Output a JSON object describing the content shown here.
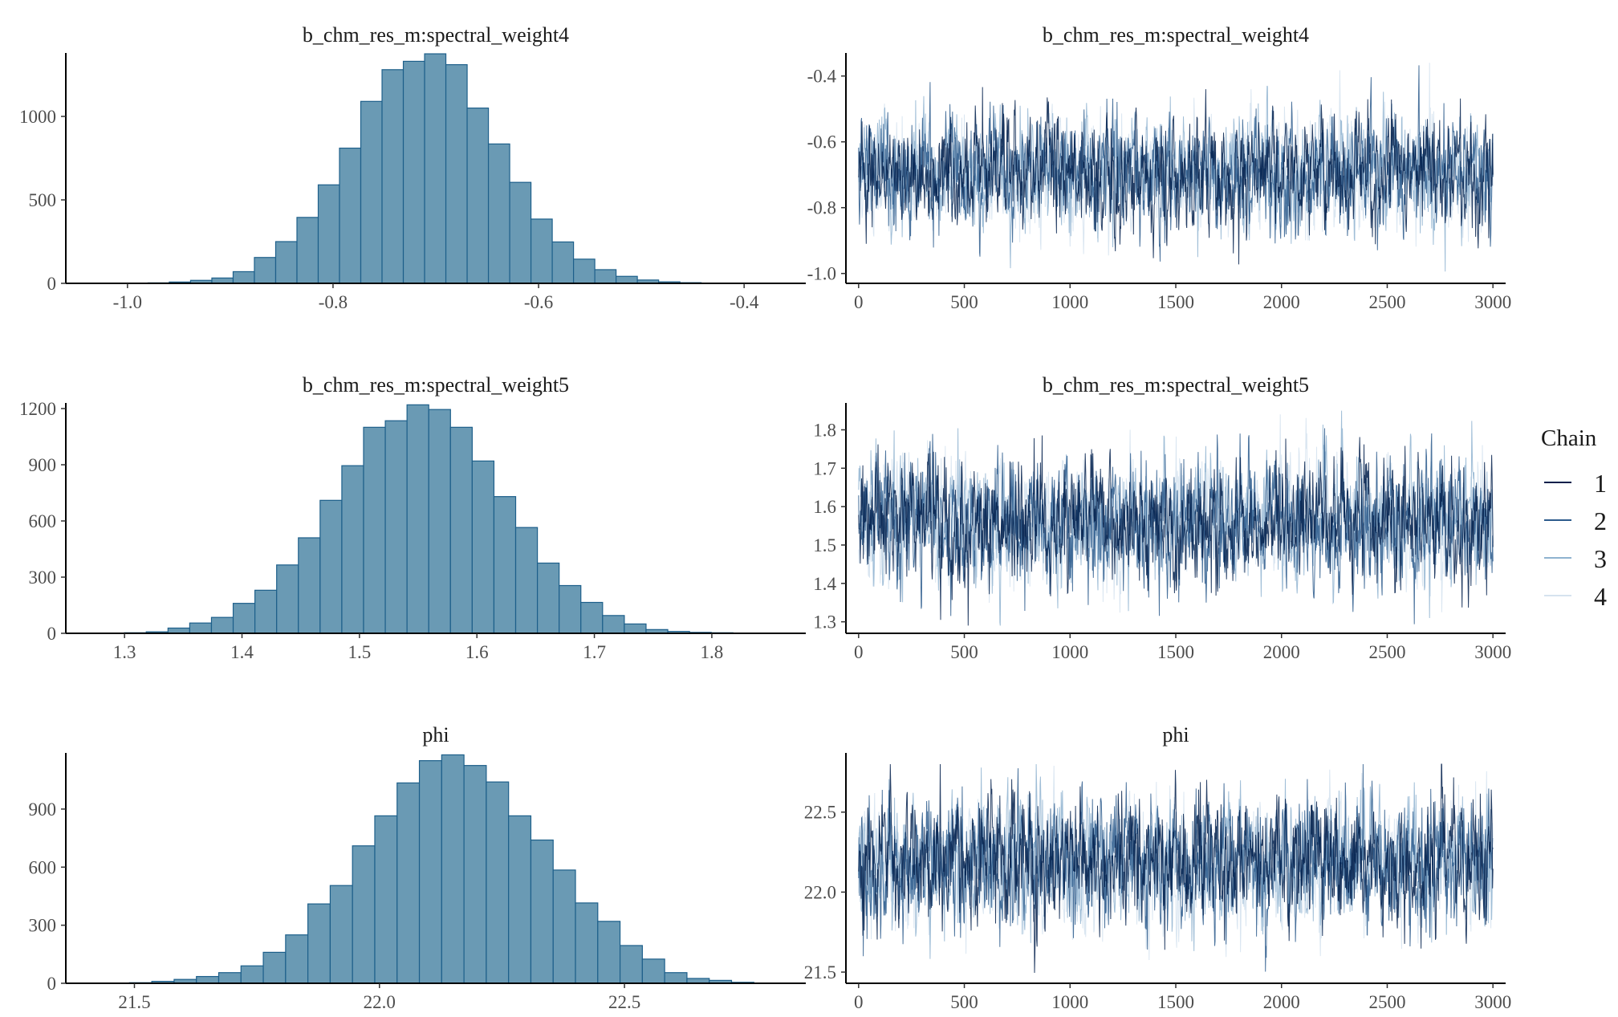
{
  "chart_data": [
    {
      "type": "bar",
      "title": "b_chm_res_m:spectral_weight4",
      "xlim": [
        -1.06,
        -0.34
      ],
      "xticks": [
        -1.0,
        -0.8,
        -0.6,
        -0.4
      ],
      "xtick_labels": [
        "-1.0",
        "-0.8",
        "-0.6",
        "-0.4"
      ],
      "ylim": [
        0,
        1380
      ],
      "yticks": [
        0,
        500,
        1000
      ],
      "ytick_labels": [
        "0",
        "500",
        "1000"
      ],
      "bin_start": -0.98,
      "bin_width": 0.0207,
      "values": [
        3,
        8,
        18,
        32,
        70,
        155,
        250,
        395,
        590,
        810,
        1090,
        1280,
        1330,
        1375,
        1310,
        1050,
        835,
        605,
        385,
        248,
        145,
        82,
        42,
        20,
        9,
        4
      ],
      "fill": "#6a9ab4",
      "stroke": "#1d5f8a"
    },
    {
      "type": "line",
      "title": "b_chm_res_m:spectral_weight4",
      "xlim": [
        -60,
        3060
      ],
      "xticks": [
        0,
        500,
        1000,
        1500,
        2000,
        2500,
        3000
      ],
      "xtick_labels": [
        "0",
        "500",
        "1000",
        "1500",
        "2000",
        "2500",
        "3000"
      ],
      "ylim": [
        -1.03,
        -0.33
      ],
      "yticks": [
        -1.0,
        -0.8,
        -0.6,
        -0.4
      ],
      "ytick_labels": [
        "-1.0",
        "-0.8",
        "-0.6",
        "-0.4"
      ],
      "iterations": 3000,
      "center": -0.695,
      "sd": 0.082,
      "observed_min": -1.0,
      "observed_max": -0.36,
      "seed": 11
    },
    {
      "type": "bar",
      "title": "b_chm_res_m:spectral_weight5",
      "xlim": [
        1.25,
        1.88
      ],
      "xticks": [
        1.3,
        1.4,
        1.5,
        1.6,
        1.7,
        1.8
      ],
      "xtick_labels": [
        "1.3",
        "1.4",
        "1.5",
        "1.6",
        "1.7",
        "1.8"
      ],
      "ylim": [
        0,
        1230
      ],
      "yticks": [
        0,
        300,
        600,
        900,
        1200
      ],
      "ytick_labels": [
        "0",
        "300",
        "600",
        "900",
        "1200"
      ],
      "bin_start": 1.3,
      "bin_width": 0.0185,
      "values": [
        3,
        8,
        28,
        55,
        85,
        160,
        230,
        365,
        510,
        710,
        895,
        1100,
        1135,
        1220,
        1195,
        1100,
        920,
        730,
        565,
        375,
        255,
        165,
        95,
        50,
        20,
        10,
        5,
        3
      ],
      "fill": "#6a9ab4",
      "stroke": "#1d5f8a"
    },
    {
      "type": "line",
      "title": "b_chm_res_m:spectral_weight5",
      "xlim": [
        -60,
        3060
      ],
      "xticks": [
        0,
        500,
        1000,
        1500,
        2000,
        2500,
        3000
      ],
      "xtick_labels": [
        "0",
        "500",
        "1000",
        "1500",
        "2000",
        "2500",
        "3000"
      ],
      "ylim": [
        1.27,
        1.87
      ],
      "yticks": [
        1.3,
        1.4,
        1.5,
        1.6,
        1.7,
        1.8
      ],
      "ytick_labels": [
        "1.3",
        "1.4",
        "1.5",
        "1.6",
        "1.7",
        "1.8"
      ],
      "iterations": 3000,
      "center": 1.56,
      "sd": 0.077,
      "observed_min": 1.29,
      "observed_max": 1.85,
      "seed": 23
    },
    {
      "type": "bar",
      "title": "phi",
      "xlim": [
        21.36,
        22.87
      ],
      "xticks": [
        21.5,
        22.0,
        22.5
      ],
      "xtick_labels": [
        "21.5",
        "22.0",
        "22.5"
      ],
      "ylim": [
        0,
        1190
      ],
      "yticks": [
        0,
        300,
        600,
        900
      ],
      "ytick_labels": [
        "0",
        "300",
        "600",
        "900"
      ],
      "bin_start": 21.49,
      "bin_width": 0.0455,
      "values": [
        3,
        10,
        20,
        35,
        55,
        90,
        160,
        250,
        410,
        505,
        710,
        865,
        1035,
        1150,
        1180,
        1125,
        1040,
        865,
        740,
        585,
        415,
        320,
        195,
        125,
        55,
        25,
        15,
        5
      ],
      "fill": "#6a9ab4",
      "stroke": "#1d5f8a"
    },
    {
      "type": "line",
      "title": "phi",
      "xlim": [
        -60,
        3060
      ],
      "xticks": [
        0,
        500,
        1000,
        1500,
        2000,
        2500,
        3000
      ],
      "xtick_labels": [
        "0",
        "500",
        "1000",
        "1500",
        "2000",
        "2500",
        "3000"
      ],
      "ylim": [
        21.43,
        22.87
      ],
      "yticks": [
        21.5,
        22.0,
        22.5
      ],
      "ytick_labels": [
        "21.5",
        "22.0",
        "22.5"
      ],
      "iterations": 3000,
      "center": 22.17,
      "sd": 0.19,
      "observed_min": 21.45,
      "observed_max": 22.8,
      "seed": 37
    }
  ],
  "legend": {
    "title": "Chain",
    "placement": "right",
    "items": [
      {
        "label": "1",
        "color": "#011f4b"
      },
      {
        "label": "2",
        "color": "#2c5b8c"
      },
      {
        "label": "3",
        "color": "#8fb3d0"
      },
      {
        "label": "4",
        "color": "#d6e3ef"
      }
    ]
  }
}
